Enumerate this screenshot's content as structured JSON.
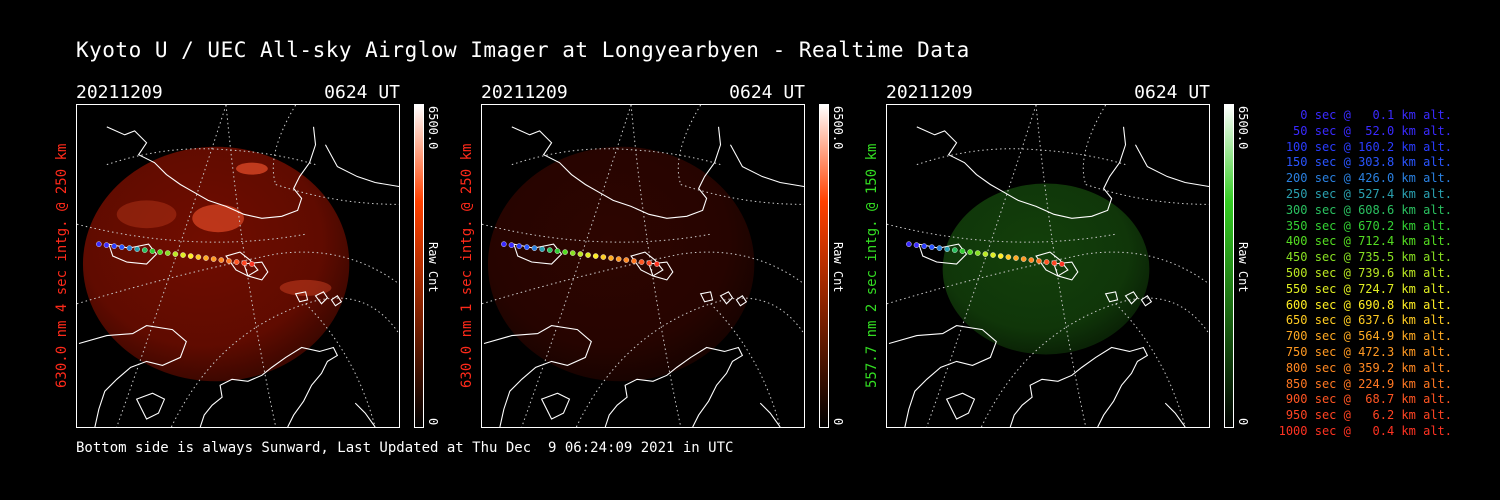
{
  "title": "Kyoto U / UEC All-sky Airglow Imager at Longyearbyen - Realtime Data",
  "panels": [
    {
      "date": "20211209",
      "time": "0624 UT",
      "side_label": "630.0 nm 4 sec intg. @ 250 km",
      "label_color": "#ff2a1a",
      "cbar_max": "6500.0",
      "cbar_unit": "Raw Cnt",
      "cbar_min": "0",
      "cbar_color": "#ff4000",
      "glow_color": "#b51500",
      "glow_opacity": 0.62
    },
    {
      "date": "20211209",
      "time": "0624 UT",
      "side_label": "630.0 nm 1 sec intg. @ 250 km",
      "label_color": "#ff2a1a",
      "cbar_max": "6500.0",
      "cbar_unit": "Raw Cnt",
      "cbar_min": "0",
      "cbar_color": "#ff4000",
      "glow_color": "#5a0a00",
      "glow_opacity": 0.5
    },
    {
      "date": "20211209",
      "time": "0624 UT",
      "side_label": "557.7 nm 2 sec intg. @ 150 km",
      "label_color": "#33dd22",
      "cbar_max": "6500.0",
      "cbar_unit": "Raw Cnt",
      "cbar_min": "0",
      "cbar_color": "#33cc22",
      "glow_color": "#1f6a12",
      "glow_opacity": 0.6
    }
  ],
  "legend": [
    {
      "text": "0 sec @   0.1 km alt.",
      "color": "#3a2aff"
    },
    {
      "text": "50 sec @  52.0 km alt.",
      "color": "#3a2aff"
    },
    {
      "text": "100 sec @ 160.2 km alt.",
      "color": "#2a3cff"
    },
    {
      "text": "150 sec @ 303.8 km alt.",
      "color": "#2a55ff"
    },
    {
      "text": "200 sec @ 426.0 km alt.",
      "color": "#2a80e0"
    },
    {
      "text": "250 sec @ 527.4 km alt.",
      "color": "#2aa0b0"
    },
    {
      "text": "300 sec @ 608.6 km alt.",
      "color": "#2ac060"
    },
    {
      "text": "350 sec @ 670.2 km alt.",
      "color": "#33d033"
    },
    {
      "text": "400 sec @ 712.4 km alt.",
      "color": "#55dd22"
    },
    {
      "text": "450 sec @ 735.5 km alt.",
      "color": "#88e022"
    },
    {
      "text": "500 sec @ 739.6 km alt.",
      "color": "#bbe822"
    },
    {
      "text": "550 sec @ 724.7 km alt.",
      "color": "#e0ee22"
    },
    {
      "text": "600 sec @ 690.8 km alt.",
      "color": "#ffee22"
    },
    {
      "text": "650 sec @ 637.6 km alt.",
      "color": "#ffcc22"
    },
    {
      "text": "700 sec @ 564.9 km alt.",
      "color": "#ffaa22"
    },
    {
      "text": "750 sec @ 472.3 km alt.",
      "color": "#ff9922"
    },
    {
      "text": "800 sec @ 359.2 km alt.",
      "color": "#ff8822"
    },
    {
      "text": "850 sec @ 224.9 km alt.",
      "color": "#ff7722"
    },
    {
      "text": "900 sec @  68.7 km alt.",
      "color": "#ff5522"
    },
    {
      "text": "950 sec @   6.2 km alt.",
      "color": "#ff4422"
    },
    {
      "text": "1000 sec @   0.4 km alt.",
      "color": "#ff3322"
    }
  ],
  "footer": "Bottom side is always Sunward, Last Updated at Thu Dec  9 06:24:09 2021 in UTC"
}
